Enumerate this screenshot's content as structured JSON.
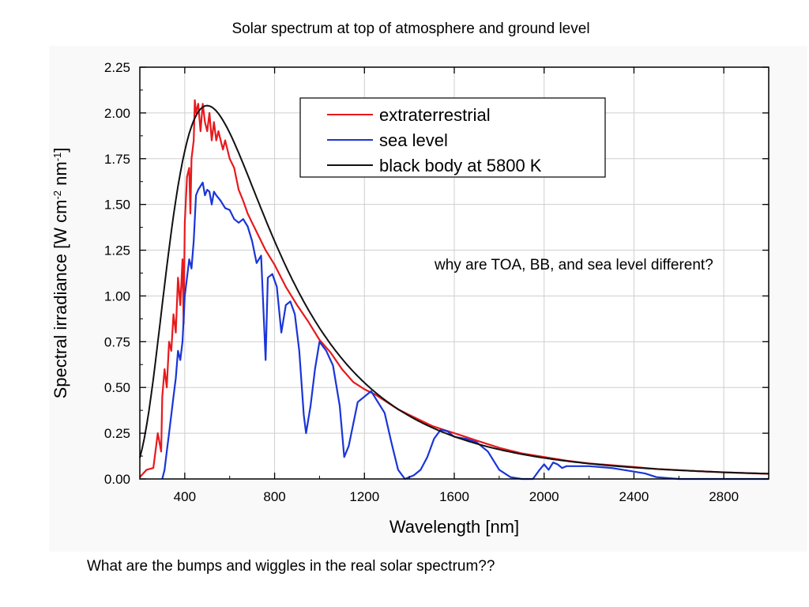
{
  "slide": {
    "title": "Solar spectrum at top of atmosphere and ground level",
    "note": "why are TOA, BB, and sea level different?",
    "footer": "What are the bumps and wiggles in the real solar spectrum??"
  },
  "chart_data": {
    "type": "line",
    "xlabel": "Wavelength [nm]",
    "ylabel": "Spectral irradiance [W cm-2 nm-1]",
    "xlim": [
      200,
      3000
    ],
    "ylim": [
      0,
      2.25
    ],
    "xticks": [
      "400",
      "800",
      "1200",
      "1600",
      "2000",
      "2400",
      "2800"
    ],
    "yticks": [
      "0.00",
      "0.25",
      "0.50",
      "0.75",
      "1.00",
      "1.25",
      "1.50",
      "1.75",
      "2.00",
      "2.25"
    ],
    "grid": true,
    "legend_position": "top-center",
    "series": [
      {
        "name": "extraterrestrial",
        "color": "#e8191c",
        "points": [
          [
            200,
            0.01
          ],
          [
            230,
            0.05
          ],
          [
            260,
            0.06
          ],
          [
            280,
            0.25
          ],
          [
            295,
            0.15
          ],
          [
            300,
            0.45
          ],
          [
            310,
            0.6
          ],
          [
            320,
            0.5
          ],
          [
            330,
            0.75
          ],
          [
            340,
            0.7
          ],
          [
            350,
            0.9
          ],
          [
            360,
            0.8
          ],
          [
            370,
            1.1
          ],
          [
            380,
            0.95
          ],
          [
            390,
            1.2
          ],
          [
            395,
            0.85
          ],
          [
            400,
            1.4
          ],
          [
            410,
            1.65
          ],
          [
            420,
            1.7
          ],
          [
            425,
            1.45
          ],
          [
            430,
            1.75
          ],
          [
            440,
            1.85
          ],
          [
            445,
            2.07
          ],
          [
            450,
            2.0
          ],
          [
            460,
            2.05
          ],
          [
            470,
            1.9
          ],
          [
            480,
            2.05
          ],
          [
            490,
            1.95
          ],
          [
            500,
            1.9
          ],
          [
            510,
            2.0
          ],
          [
            520,
            1.85
          ],
          [
            530,
            1.95
          ],
          [
            540,
            1.85
          ],
          [
            550,
            1.9
          ],
          [
            560,
            1.85
          ],
          [
            570,
            1.8
          ],
          [
            580,
            1.85
          ],
          [
            600,
            1.75
          ],
          [
            620,
            1.7
          ],
          [
            640,
            1.58
          ],
          [
            660,
            1.52
          ],
          [
            680,
            1.45
          ],
          [
            700,
            1.4
          ],
          [
            720,
            1.35
          ],
          [
            740,
            1.3
          ],
          [
            760,
            1.25
          ],
          [
            800,
            1.17
          ],
          [
            850,
            1.05
          ],
          [
            900,
            0.95
          ],
          [
            950,
            0.86
          ],
          [
            1000,
            0.76
          ],
          [
            1050,
            0.69
          ],
          [
            1100,
            0.6
          ],
          [
            1150,
            0.53
          ],
          [
            1200,
            0.49
          ],
          [
            1250,
            0.46
          ],
          [
            1300,
            0.42
          ],
          [
            1350,
            0.38
          ],
          [
            1400,
            0.35
          ],
          [
            1450,
            0.32
          ],
          [
            1500,
            0.29
          ],
          [
            1550,
            0.27
          ],
          [
            1600,
            0.25
          ],
          [
            1650,
            0.23
          ],
          [
            1700,
            0.21
          ],
          [
            1800,
            0.17
          ],
          [
            1900,
            0.14
          ],
          [
            2000,
            0.12
          ],
          [
            2100,
            0.1
          ],
          [
            2200,
            0.085
          ],
          [
            2300,
            0.075
          ],
          [
            2400,
            0.065
          ],
          [
            2500,
            0.055
          ],
          [
            2600,
            0.048
          ],
          [
            2700,
            0.042
          ],
          [
            2800,
            0.036
          ],
          [
            2900,
            0.032
          ],
          [
            3000,
            0.028
          ]
        ]
      },
      {
        "name": "sea level",
        "color": "#1a35d8",
        "points": [
          [
            300,
            0.0
          ],
          [
            310,
            0.05
          ],
          [
            320,
            0.15
          ],
          [
            330,
            0.25
          ],
          [
            340,
            0.35
          ],
          [
            350,
            0.45
          ],
          [
            360,
            0.55
          ],
          [
            370,
            0.7
          ],
          [
            380,
            0.65
          ],
          [
            390,
            0.75
          ],
          [
            400,
            1.0
          ],
          [
            410,
            1.1
          ],
          [
            420,
            1.2
          ],
          [
            430,
            1.15
          ],
          [
            440,
            1.3
          ],
          [
            450,
            1.55
          ],
          [
            460,
            1.58
          ],
          [
            470,
            1.6
          ],
          [
            480,
            1.62
          ],
          [
            490,
            1.55
          ],
          [
            500,
            1.58
          ],
          [
            510,
            1.57
          ],
          [
            520,
            1.5
          ],
          [
            530,
            1.57
          ],
          [
            540,
            1.55
          ],
          [
            560,
            1.52
          ],
          [
            580,
            1.48
          ],
          [
            600,
            1.47
          ],
          [
            620,
            1.42
          ],
          [
            640,
            1.4
          ],
          [
            660,
            1.42
          ],
          [
            680,
            1.38
          ],
          [
            700,
            1.3
          ],
          [
            720,
            1.18
          ],
          [
            740,
            1.22
          ],
          [
            760,
            0.65
          ],
          [
            770,
            1.1
          ],
          [
            790,
            1.12
          ],
          [
            810,
            1.05
          ],
          [
            830,
            0.8
          ],
          [
            850,
            0.95
          ],
          [
            870,
            0.97
          ],
          [
            890,
            0.9
          ],
          [
            910,
            0.7
          ],
          [
            930,
            0.35
          ],
          [
            940,
            0.25
          ],
          [
            960,
            0.4
          ],
          [
            980,
            0.6
          ],
          [
            1000,
            0.75
          ],
          [
            1030,
            0.7
          ],
          [
            1060,
            0.62
          ],
          [
            1090,
            0.4
          ],
          [
            1110,
            0.12
          ],
          [
            1130,
            0.18
          ],
          [
            1150,
            0.3
          ],
          [
            1170,
            0.42
          ],
          [
            1200,
            0.45
          ],
          [
            1230,
            0.48
          ],
          [
            1260,
            0.42
          ],
          [
            1290,
            0.36
          ],
          [
            1320,
            0.2
          ],
          [
            1350,
            0.05
          ],
          [
            1380,
            0.0
          ],
          [
            1420,
            0.02
          ],
          [
            1450,
            0.05
          ],
          [
            1480,
            0.12
          ],
          [
            1510,
            0.22
          ],
          [
            1540,
            0.27
          ],
          [
            1570,
            0.26
          ],
          [
            1600,
            0.23
          ],
          [
            1650,
            0.22
          ],
          [
            1700,
            0.2
          ],
          [
            1750,
            0.15
          ],
          [
            1800,
            0.05
          ],
          [
            1850,
            0.01
          ],
          [
            1900,
            0.0
          ],
          [
            1950,
            0.0
          ],
          [
            1980,
            0.05
          ],
          [
            2000,
            0.08
          ],
          [
            2020,
            0.05
          ],
          [
            2040,
            0.09
          ],
          [
            2060,
            0.08
          ],
          [
            2080,
            0.06
          ],
          [
            2100,
            0.07
          ],
          [
            2200,
            0.07
          ],
          [
            2300,
            0.06
          ],
          [
            2400,
            0.04
          ],
          [
            2450,
            0.03
          ],
          [
            2500,
            0.01
          ],
          [
            2600,
            0.0
          ],
          [
            3000,
            0.0
          ]
        ]
      },
      {
        "name": "black body at 5800 K",
        "color": "#111111",
        "temperature_K": 5800,
        "peak_value": 2.04
      }
    ]
  }
}
